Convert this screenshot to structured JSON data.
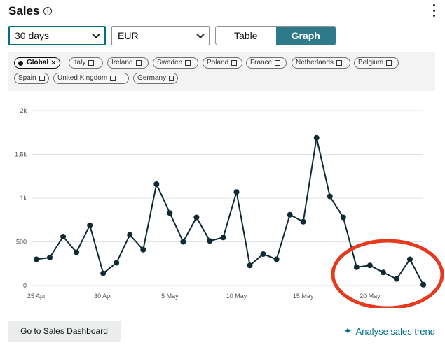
{
  "header": {
    "title": "Sales",
    "info_icon": "info-icon",
    "more_icon": "more-vertical-icon"
  },
  "controls": {
    "days_select": {
      "value": "30 days"
    },
    "currency_select": {
      "value": "EUR"
    },
    "view_toggle": {
      "table_label": "Table",
      "graph_label": "Graph",
      "selected": "Graph"
    }
  },
  "filters": {
    "chips": [
      {
        "label": "Global",
        "selected": true
      },
      {
        "label": "Italy",
        "selected": false
      },
      {
        "label": "Ireland",
        "selected": false
      },
      {
        "label": "Sweden",
        "selected": false
      },
      {
        "label": "Poland",
        "selected": false
      },
      {
        "label": "France",
        "selected": false
      },
      {
        "label": "Netherlands",
        "selected": false
      },
      {
        "label": "Belgium",
        "selected": false
      },
      {
        "label": "Spain",
        "selected": false
      },
      {
        "label": "United Kingdom",
        "selected": false
      },
      {
        "label": "Germany",
        "selected": false
      }
    ]
  },
  "chart_data": {
    "type": "line",
    "y_ticks": [
      "0",
      "500",
      "1k",
      "1.5k",
      "2k"
    ],
    "ylim": [
      0,
      2000
    ],
    "x_tick_labels": [
      {
        "label": "25 Apr",
        "index": 0
      },
      {
        "label": "30 Apr",
        "index": 5
      },
      {
        "label": "5 May",
        "index": 10
      },
      {
        "label": "10 May",
        "index": 15
      },
      {
        "label": "15 May",
        "index": 20
      },
      {
        "label": "20 May",
        "index": 25
      }
    ],
    "values": [
      300,
      320,
      560,
      380,
      690,
      140,
      260,
      580,
      410,
      1160,
      830,
      500,
      780,
      510,
      550,
      1070,
      230,
      360,
      300,
      810,
      730,
      1690,
      1020,
      780,
      210,
      230,
      150,
      75,
      300,
      10
    ],
    "grid": true,
    "line_color": "#0f2a33",
    "annotation": {
      "shape": "ellipse",
      "color": "#e53a1d"
    }
  },
  "footer": {
    "dashboard_button": "Go to Sales Dashboard",
    "analyse_link": "Analyse sales trend",
    "analyse_icon": "sparkle-icon"
  },
  "colors": {
    "accent": "#2e7a8a",
    "link": "#007185"
  }
}
